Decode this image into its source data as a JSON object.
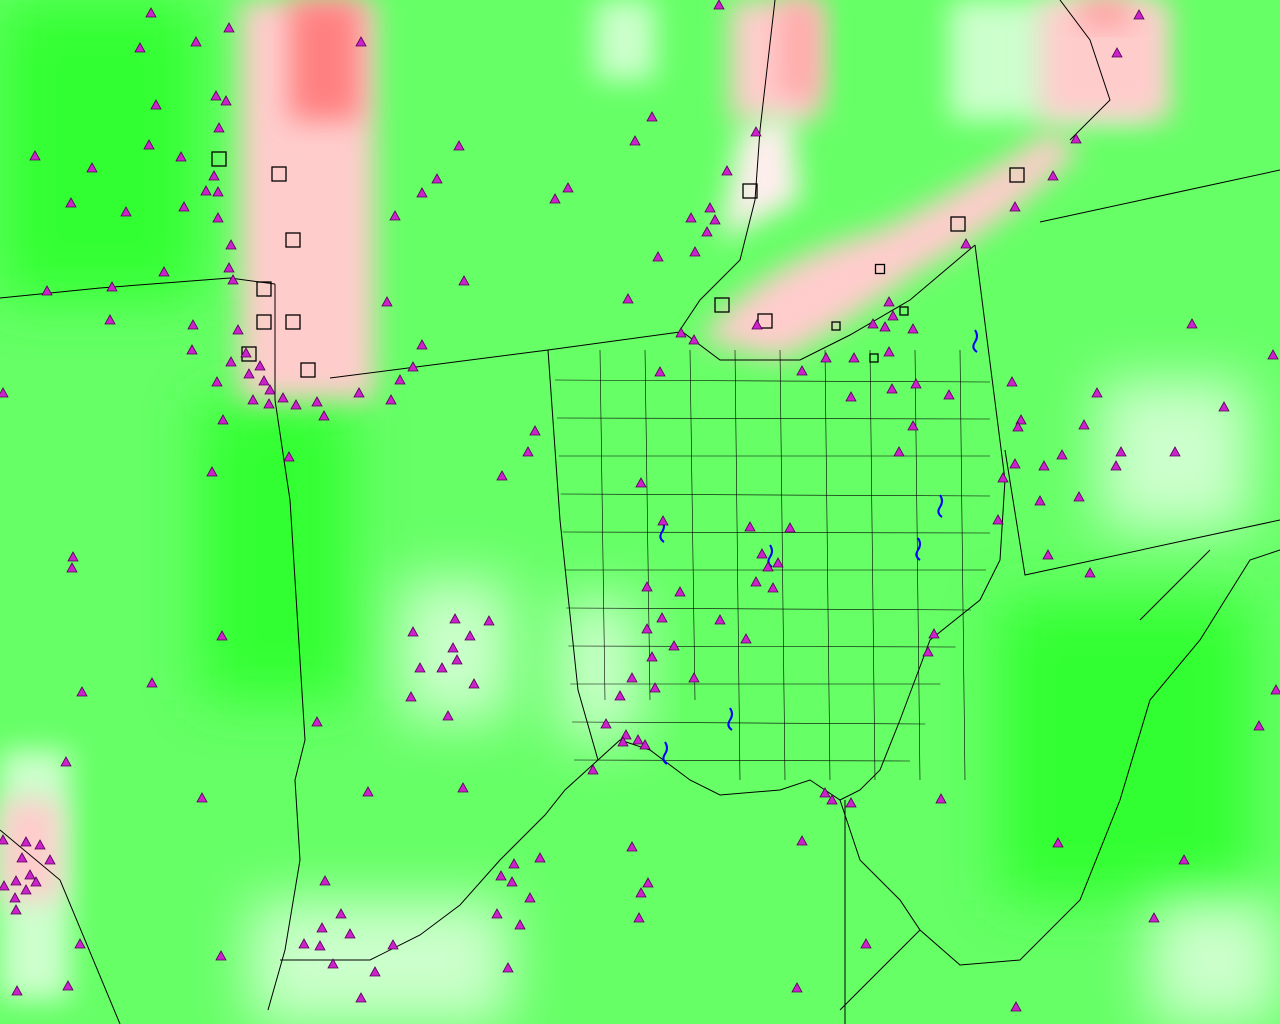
{
  "map": {
    "colors": {
      "strong_green": "#33ff33",
      "green": "#66ff66",
      "light_green": "#ccffcc",
      "white": "#ffffff",
      "pink": "#ffcccc",
      "red": "#ff8080",
      "border": "#000000",
      "lake": "#0000ff",
      "station_fill": "#cc22cc",
      "station_outline": "#550055"
    },
    "layers": [
      "gridded-field",
      "state-borders",
      "county-borders",
      "station-triangles",
      "site-squares"
    ],
    "markers": {
      "stations": "triangle",
      "sites": "open-square"
    }
  }
}
